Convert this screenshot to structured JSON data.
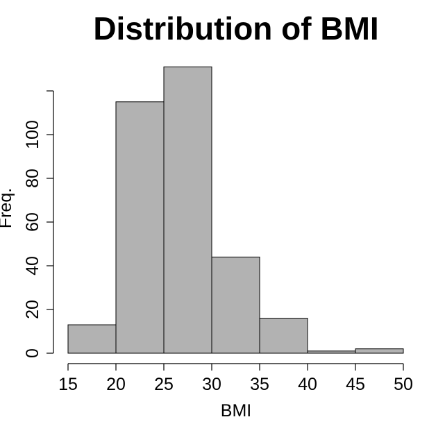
{
  "chart_data": {
    "type": "bar",
    "title": "Distribution of BMI",
    "xlabel": "BMI",
    "ylabel": "Freq.",
    "bin_edges": [
      15,
      20,
      25,
      30,
      35,
      40,
      45,
      50
    ],
    "values": [
      13,
      115,
      131,
      44,
      16,
      1,
      2
    ],
    "xlim": [
      15,
      50
    ],
    "ylim": [
      0,
      120
    ],
    "xticks": [
      15,
      20,
      25,
      30,
      35,
      40,
      45,
      50
    ],
    "yticks": [
      0,
      20,
      40,
      60,
      80,
      100
    ],
    "bar_color": "#b2b2b2",
    "grid": false,
    "legend": "none"
  }
}
